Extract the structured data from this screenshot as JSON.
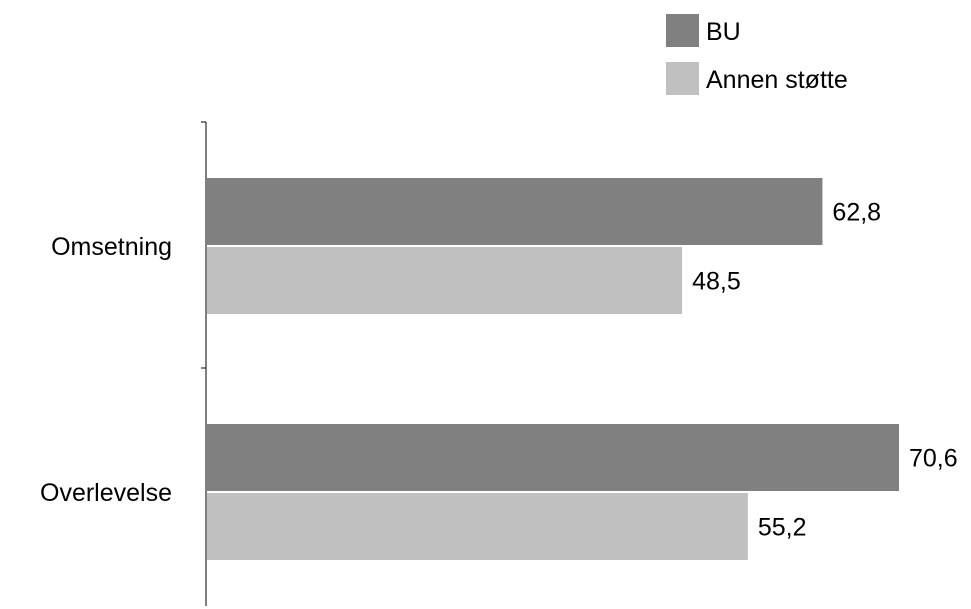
{
  "chart_data": {
    "type": "bar",
    "orientation": "horizontal",
    "categories": [
      "Omsetning",
      "Overlevelse"
    ],
    "series": [
      {
        "name": "BU",
        "values": [
          62.8,
          70.6
        ],
        "color": "#808080"
      },
      {
        "name": "Annen støtte",
        "values": [
          48.5,
          55.2
        ],
        "color": "#c0c0c0"
      }
    ],
    "value_labels": [
      [
        "62,8",
        "70,6"
      ],
      [
        "48,5",
        "55,2"
      ]
    ],
    "xlim": [
      0,
      70.6
    ],
    "grid": false,
    "legend_position": "top-right",
    "title": "",
    "xlabel": "",
    "ylabel": ""
  }
}
